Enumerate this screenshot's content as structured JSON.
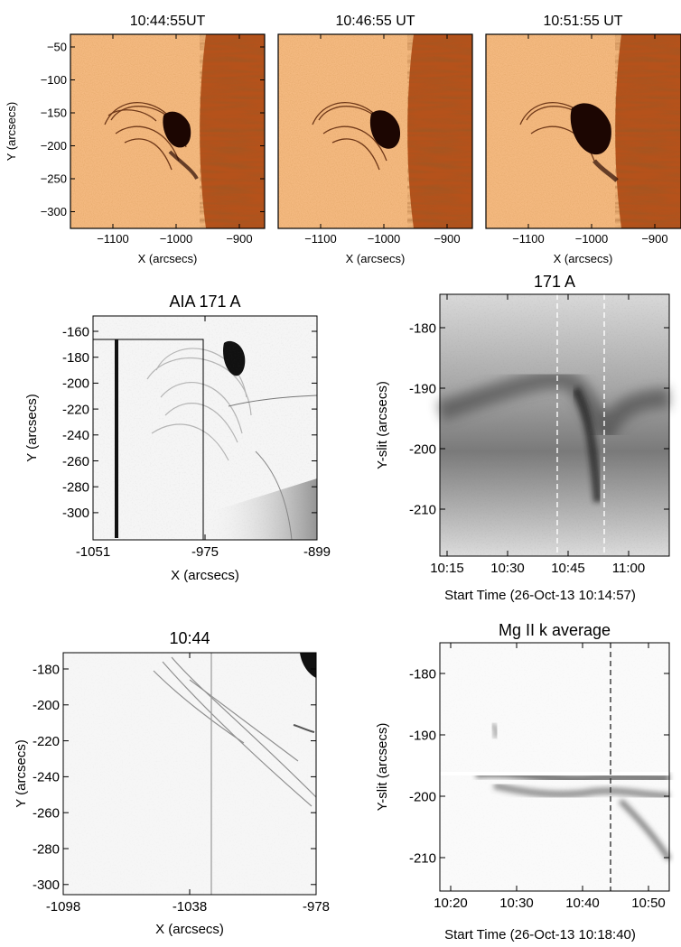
{
  "top_row": {
    "panels": [
      {
        "title": "10:44:55UT"
      },
      {
        "title": "10:46:55 UT"
      },
      {
        "title": "10:51:55 UT"
      }
    ],
    "ylabel": "Y (arcsecs)",
    "xlabel": "X (arcsecs)",
    "yticks": [
      "−50",
      "−100",
      "−150",
      "−200",
      "−250",
      "−300"
    ],
    "xticks": [
      "−1100",
      "−1000",
      "−900"
    ],
    "colors": {
      "disk": "#b5521b",
      "corona": "#f4b980",
      "loops": "#3a1206"
    }
  },
  "aia_panel": {
    "title": "AIA 171 A",
    "ylabel": "Y (arcsecs)",
    "xlabel": "X (arcsecs)",
    "yticks": [
      "-160",
      "-180",
      "-200",
      "-220",
      "-240",
      "-260",
      "-280",
      "-300"
    ],
    "xticks": [
      "-1051",
      "-975",
      "-899"
    ]
  },
  "timeslice_171": {
    "title": "171 A",
    "ylabel": "Y-slit (arcsecs)",
    "xlabel": "Start Time (26-Oct-13 10:14:57)",
    "yticks": [
      "-180",
      "-190",
      "-200",
      "-210"
    ],
    "xticks": [
      "10:15",
      "10:30",
      "10:45",
      "11:00"
    ]
  },
  "iris_panel": {
    "title": "10:44",
    "ylabel": "Y (arcsecs)",
    "xlabel": "X (arcsecs)",
    "yticks": [
      "-180",
      "-200",
      "-220",
      "-240",
      "-260",
      "-280",
      "-300"
    ],
    "xticks": [
      "-1098",
      "-1038",
      "-978"
    ]
  },
  "mg_panel": {
    "title": "Mg II k average",
    "ylabel": "Y-slit (arcsecs)",
    "xlabel": "Start Time (26-Oct-13 10:18:40)",
    "yticks": [
      "-180",
      "-190",
      "-200",
      "-210"
    ],
    "xticks": [
      "10:20",
      "10:30",
      "10:40",
      "10:50"
    ]
  }
}
